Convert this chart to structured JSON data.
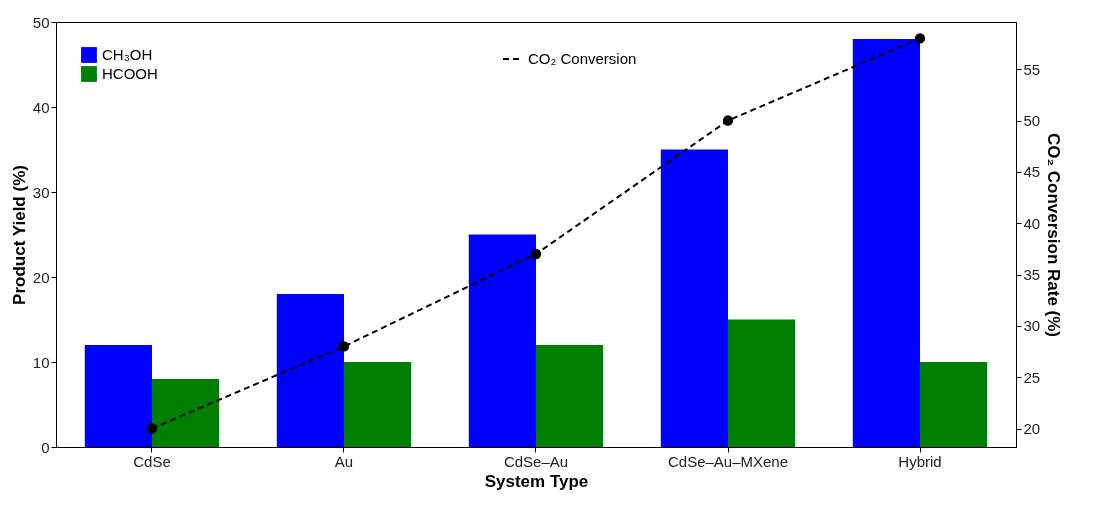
{
  "chart_data": {
    "type": "bar",
    "xlabel": "System Type",
    "ylabel": "Product Yield (%)",
    "y2label": "CO₂ Conversion Rate (%)",
    "categories": [
      "CdSe",
      "Au",
      "CdSe–Au",
      "CdSe–Au–MXene",
      "Hybrid"
    ],
    "series": [
      {
        "name": "CH₃OH",
        "color": "#0000ff",
        "values": [
          12,
          18,
          25,
          35,
          48
        ]
      },
      {
        "name": "HCOOH",
        "color": "#008000",
        "values": [
          8,
          10,
          12,
          15,
          10
        ]
      },
      {
        "name": "CO₂ Conversion",
        "type": "line",
        "axis": "y2",
        "color": "#000000",
        "values": [
          20,
          28,
          37,
          50,
          58
        ]
      }
    ],
    "ylim": [
      0,
      50
    ],
    "yticks": [
      0,
      10,
      20,
      30,
      40,
      50
    ],
    "y2lim": [
      18.2,
      59.6
    ],
    "y2ticks": [
      20,
      25,
      30,
      35,
      40,
      45,
      50,
      55
    ],
    "legend": "top left",
    "marker": "circle",
    "line_style": "dashed"
  }
}
